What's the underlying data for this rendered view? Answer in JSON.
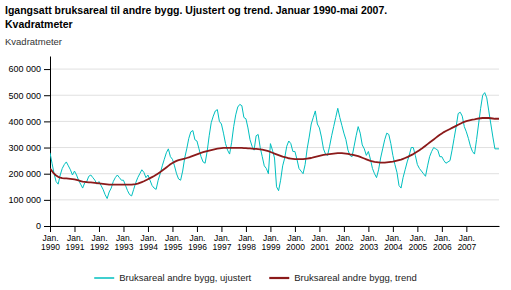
{
  "chart_data": {
    "type": "line",
    "title": "Igangsatt bruksareal til andre bygg. Ujustert og trend. Januar 1990-mai 2007.",
    "subtitle": "Kvadratmeter",
    "y_label": "Kvadratmeter",
    "ylim": [
      0,
      650000
    ],
    "yticks": [
      0,
      {
        "value": 100000,
        "label": "100 000"
      },
      {
        "value": 200000,
        "label": "200 000"
      },
      {
        "value": 300000,
        "label": "300 000"
      },
      {
        "value": 400000,
        "label": "400 000"
      },
      {
        "value": 500000,
        "label": "500 000"
      },
      {
        "value": 600000,
        "label": "600 000"
      }
    ],
    "grid": true,
    "legend": "bottom",
    "categories": [
      "Jan.\n1990",
      null,
      null,
      null,
      null,
      null,
      null,
      null,
      null,
      null,
      null,
      null,
      "Jan.\n1991",
      null,
      null,
      null,
      null,
      null,
      null,
      null,
      null,
      null,
      null,
      null,
      "Jan.\n1992",
      null,
      null,
      null,
      null,
      null,
      null,
      null,
      null,
      null,
      null,
      null,
      "Jan.\n1993",
      null,
      null,
      null,
      null,
      null,
      null,
      null,
      null,
      null,
      null,
      null,
      "Jan.\n1994",
      null,
      null,
      null,
      null,
      null,
      null,
      null,
      null,
      null,
      null,
      null,
      "Jan.\n1995",
      null,
      null,
      null,
      null,
      null,
      null,
      null,
      null,
      null,
      null,
      null,
      "Jan.\n1996",
      null,
      null,
      null,
      null,
      null,
      null,
      null,
      null,
      null,
      null,
      null,
      "Jan.\n1997",
      null,
      null,
      null,
      null,
      null,
      null,
      null,
      null,
      null,
      null,
      null,
      "Jan.\n1998",
      null,
      null,
      null,
      null,
      null,
      null,
      null,
      null,
      null,
      null,
      null,
      "Jan.\n1999",
      null,
      null,
      null,
      null,
      null,
      null,
      null,
      null,
      null,
      null,
      null,
      "Jan.\n2000",
      null,
      null,
      null,
      null,
      null,
      null,
      null,
      null,
      null,
      null,
      null,
      "Jan.\n2001",
      null,
      null,
      null,
      null,
      null,
      null,
      null,
      null,
      null,
      null,
      null,
      "Jan.\n2002",
      null,
      null,
      null,
      null,
      null,
      null,
      null,
      null,
      null,
      null,
      null,
      "Jan.\n2003",
      null,
      null,
      null,
      null,
      null,
      null,
      null,
      null,
      null,
      null,
      null,
      "Jan.\n2004",
      null,
      null,
      null,
      null,
      null,
      null,
      null,
      null,
      null,
      null,
      null,
      "Jan.\n2005",
      null,
      null,
      null,
      null,
      null,
      null,
      null,
      null,
      null,
      null,
      null,
      "Jan.\n2006",
      null,
      null,
      null,
      null,
      null,
      null,
      null,
      null,
      null,
      null,
      null,
      "Jan.\n2007",
      null,
      null,
      null,
      null,
      null,
      null,
      null,
      null,
      null,
      null,
      null,
      null,
      null,
      null,
      null,
      null
    ],
    "series": [
      {
        "name": "Bruksareal andre bygg, ujustert",
        "color": "#00BFBF",
        "values": [
          280000,
          240000,
          200000,
          170000,
          160000,
          195000,
          220000,
          235000,
          245000,
          230000,
          215000,
          195000,
          210000,
          195000,
          175000,
          160000,
          145000,
          165000,
          170000,
          190000,
          195000,
          185000,
          175000,
          160000,
          170000,
          155000,
          140000,
          120000,
          105000,
          130000,
          145000,
          170000,
          185000,
          195000,
          185000,
          175000,
          175000,
          155000,
          135000,
          120000,
          115000,
          140000,
          165000,
          185000,
          200000,
          215000,
          205000,
          185000,
          195000,
          175000,
          155000,
          145000,
          140000,
          175000,
          200000,
          230000,
          255000,
          280000,
          295000,
          265000,
          255000,
          230000,
          200000,
          180000,
          175000,
          210000,
          260000,
          295000,
          335000,
          360000,
          365000,
          330000,
          325000,
          295000,
          265000,
          245000,
          240000,
          285000,
          345000,
          395000,
          420000,
          440000,
          445000,
          400000,
          390000,
          355000,
          315000,
          290000,
          275000,
          320000,
          380000,
          425000,
          455000,
          465000,
          460000,
          415000,
          410000,
          375000,
          330000,
          305000,
          290000,
          345000,
          350000,
          300000,
          265000,
          230000,
          220000,
          200000,
          315000,
          290000,
          260000,
          150000,
          135000,
          175000,
          230000,
          260000,
          305000,
          325000,
          315000,
          285000,
          285000,
          255000,
          220000,
          210000,
          200000,
          235000,
          295000,
          340000,
          390000,
          415000,
          440000,
          390000,
          375000,
          340000,
          295000,
          275000,
          270000,
          305000,
          345000,
          380000,
          415000,
          450000,
          415000,
          385000,
          355000,
          330000,
          290000,
          270000,
          265000,
          305000,
          345000,
          380000,
          355000,
          310000,
          295000,
          270000,
          285000,
          255000,
          220000,
          200000,
          185000,
          215000,
          260000,
          295000,
          330000,
          355000,
          350000,
          315000,
          270000,
          235000,
          205000,
          155000,
          145000,
          185000,
          215000,
          245000,
          270000,
          300000,
          300000,
          270000,
          235000,
          220000,
          210000,
          200000,
          190000,
          230000,
          265000,
          285000,
          300000,
          295000,
          290000,
          265000,
          265000,
          250000,
          240000,
          245000,
          250000,
          290000,
          335000,
          380000,
          430000,
          435000,
          420000,
          380000,
          360000,
          335000,
          305000,
          285000,
          275000,
          330000,
          390000,
          450000,
          500000,
          510000,
          490000,
          440000,
          390000,
          340000,
          295000,
          295000,
          295000
        ]
      },
      {
        "name": "Bruksareal andre bygg, trend",
        "color": "#8B1A1A",
        "values": [
          220000,
          210000,
          200000,
          193000,
          188000,
          185000,
          183000,
          182000,
          182000,
          181000,
          180000,
          179000,
          178000,
          176000,
          174000,
          172000,
          170000,
          169000,
          168000,
          167000,
          167000,
          166000,
          165000,
          164000,
          163000,
          162000,
          161000,
          160000,
          159000,
          158000,
          158000,
          158000,
          158000,
          158000,
          158000,
          158000,
          158000,
          158000,
          158000,
          158000,
          158000,
          159000,
          160000,
          162000,
          165000,
          168000,
          171000,
          175000,
          179000,
          183000,
          187000,
          191000,
          196000,
          201000,
          206000,
          212000,
          218000,
          224000,
          230000,
          236000,
          241000,
          245000,
          249000,
          252000,
          254000,
          256000,
          258000,
          260000,
          262000,
          265000,
          268000,
          271000,
          274000,
          277000,
          280000,
          282000,
          284000,
          286000,
          288000,
          290000,
          292000,
          294000,
          296000,
          297000,
          298000,
          299000,
          299000,
          299000,
          299000,
          299000,
          299000,
          299000,
          299000,
          299000,
          299000,
          298000,
          298000,
          297000,
          297000,
          296000,
          295000,
          295000,
          294000,
          293000,
          292000,
          290000,
          288000,
          286000,
          283000,
          280000,
          277000,
          274000,
          271000,
          268000,
          265000,
          263000,
          261000,
          259000,
          258000,
          257000,
          256000,
          256000,
          256000,
          256000,
          256000,
          257000,
          258000,
          259000,
          260000,
          262000,
          264000,
          266000,
          268000,
          270000,
          272000,
          273000,
          274000,
          275000,
          276000,
          277000,
          278000,
          279000,
          279000,
          279000,
          278000,
          277000,
          276000,
          274000,
          273000,
          271000,
          269000,
          267000,
          264000,
          261000,
          258000,
          255000,
          252000,
          249000,
          247000,
          245000,
          244000,
          243000,
          242000,
          242000,
          242000,
          243000,
          244000,
          245000,
          246000,
          248000,
          250000,
          252000,
          254000,
          257000,
          260000,
          263000,
          267000,
          271000,
          275000,
          280000,
          285000,
          290000,
          295000,
          301000,
          307000,
          313000,
          319000,
          325000,
          331000,
          337000,
          343000,
          349000,
          354000,
          359000,
          363000,
          367000,
          371000,
          375000,
          379000,
          383000,
          387000,
          391000,
          395000,
          398000,
          401000,
          403000,
          405000,
          407000,
          408000,
          410000,
          411000,
          412000,
          413000,
          413000,
          413000,
          413000,
          412000,
          411000,
          410000,
          410000,
          410000
        ]
      }
    ]
  }
}
